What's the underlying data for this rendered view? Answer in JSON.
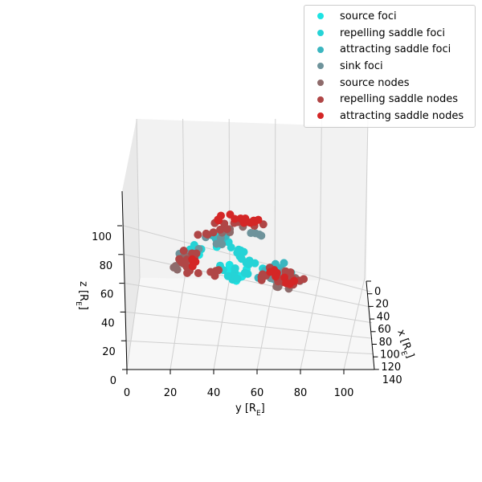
{
  "chart_data": {
    "type": "scatter",
    "projection": "3d",
    "xlabel": "x [R_E]",
    "ylabel": "y [R_E]",
    "zlabel": "z [R_E]",
    "x_ticks": [
      "0",
      "20",
      "40",
      "60",
      "80",
      "100",
      "120",
      "140"
    ],
    "y_ticks": [
      "0",
      "20",
      "40",
      "60",
      "80",
      "100"
    ],
    "z_ticks": [
      "0",
      "20",
      "40",
      "60",
      "80",
      "100"
    ],
    "xlim": [
      0,
      140
    ],
    "ylim": [
      0,
      110
    ],
    "zlim": [
      0,
      120
    ],
    "grid": true,
    "legend_position": "top-right",
    "series": [
      {
        "name": "source foci",
        "color": "#1de3e3",
        "values": [
          [
            70,
            49,
            64
          ],
          [
            68,
            51,
            67
          ],
          [
            72,
            47,
            70
          ],
          [
            62,
            66,
            68
          ],
          [
            75,
            44,
            88
          ],
          [
            60,
            31,
            82
          ],
          [
            64,
            68,
            64
          ]
        ]
      },
      {
        "name": "repelling saddle foci",
        "color": "#25d3d6",
        "values": [
          [
            70,
            49,
            62
          ],
          [
            66,
            52,
            66
          ],
          [
            74,
            46,
            72
          ],
          [
            68,
            55,
            80
          ],
          [
            60,
            32,
            84
          ],
          [
            78,
            45,
            90
          ],
          [
            62,
            63,
            70
          ],
          [
            70,
            70,
            60
          ],
          [
            64,
            72,
            66
          ],
          [
            66,
            57,
            76
          ],
          [
            70,
            50,
            84
          ]
        ]
      },
      {
        "name": "attracting saddle foci",
        "color": "#3bb6c0",
        "values": [
          [
            58,
            27,
            80
          ],
          [
            62,
            30,
            76
          ],
          [
            66,
            70,
            72
          ],
          [
            72,
            62,
            66
          ],
          [
            60,
            42,
            92
          ],
          [
            68,
            74,
            62
          ]
        ]
      },
      {
        "name": "sink foci",
        "color": "#6e939b",
        "values": [
          [
            56,
            25,
            78
          ],
          [
            60,
            29,
            82
          ],
          [
            64,
            74,
            68
          ],
          [
            70,
            67,
            64
          ],
          [
            66,
            40,
            90
          ],
          [
            62,
            60,
            96
          ]
        ]
      },
      {
        "name": "source nodes",
        "color": "#8e6b6b",
        "values": [
          [
            58,
            24,
            72
          ],
          [
            60,
            27,
            76
          ],
          [
            66,
            76,
            64
          ],
          [
            70,
            72,
            58
          ],
          [
            64,
            45,
            98
          ],
          [
            60,
            55,
            100
          ]
        ]
      },
      {
        "name": "repelling saddle nodes",
        "color": "#b04646",
        "values": [
          [
            56,
            25,
            76
          ],
          [
            58,
            28,
            80
          ],
          [
            60,
            31,
            70
          ],
          [
            62,
            40,
            68
          ],
          [
            64,
            74,
            66
          ],
          [
            68,
            70,
            62
          ],
          [
            70,
            78,
            60
          ],
          [
            62,
            42,
            100
          ],
          [
            64,
            52,
            104
          ],
          [
            66,
            62,
            102
          ],
          [
            60,
            36,
            96
          ],
          [
            66,
            60,
            64
          ],
          [
            72,
            64,
            68
          ]
        ]
      },
      {
        "name": "attracting saddle nodes",
        "color": "#d42626",
        "values": [
          [
            62,
            45,
            106
          ],
          [
            64,
            52,
            104
          ],
          [
            60,
            60,
            104
          ],
          [
            58,
            32,
            74
          ],
          [
            70,
            75,
            62
          ],
          [
            66,
            66,
            66
          ]
        ]
      }
    ]
  }
}
